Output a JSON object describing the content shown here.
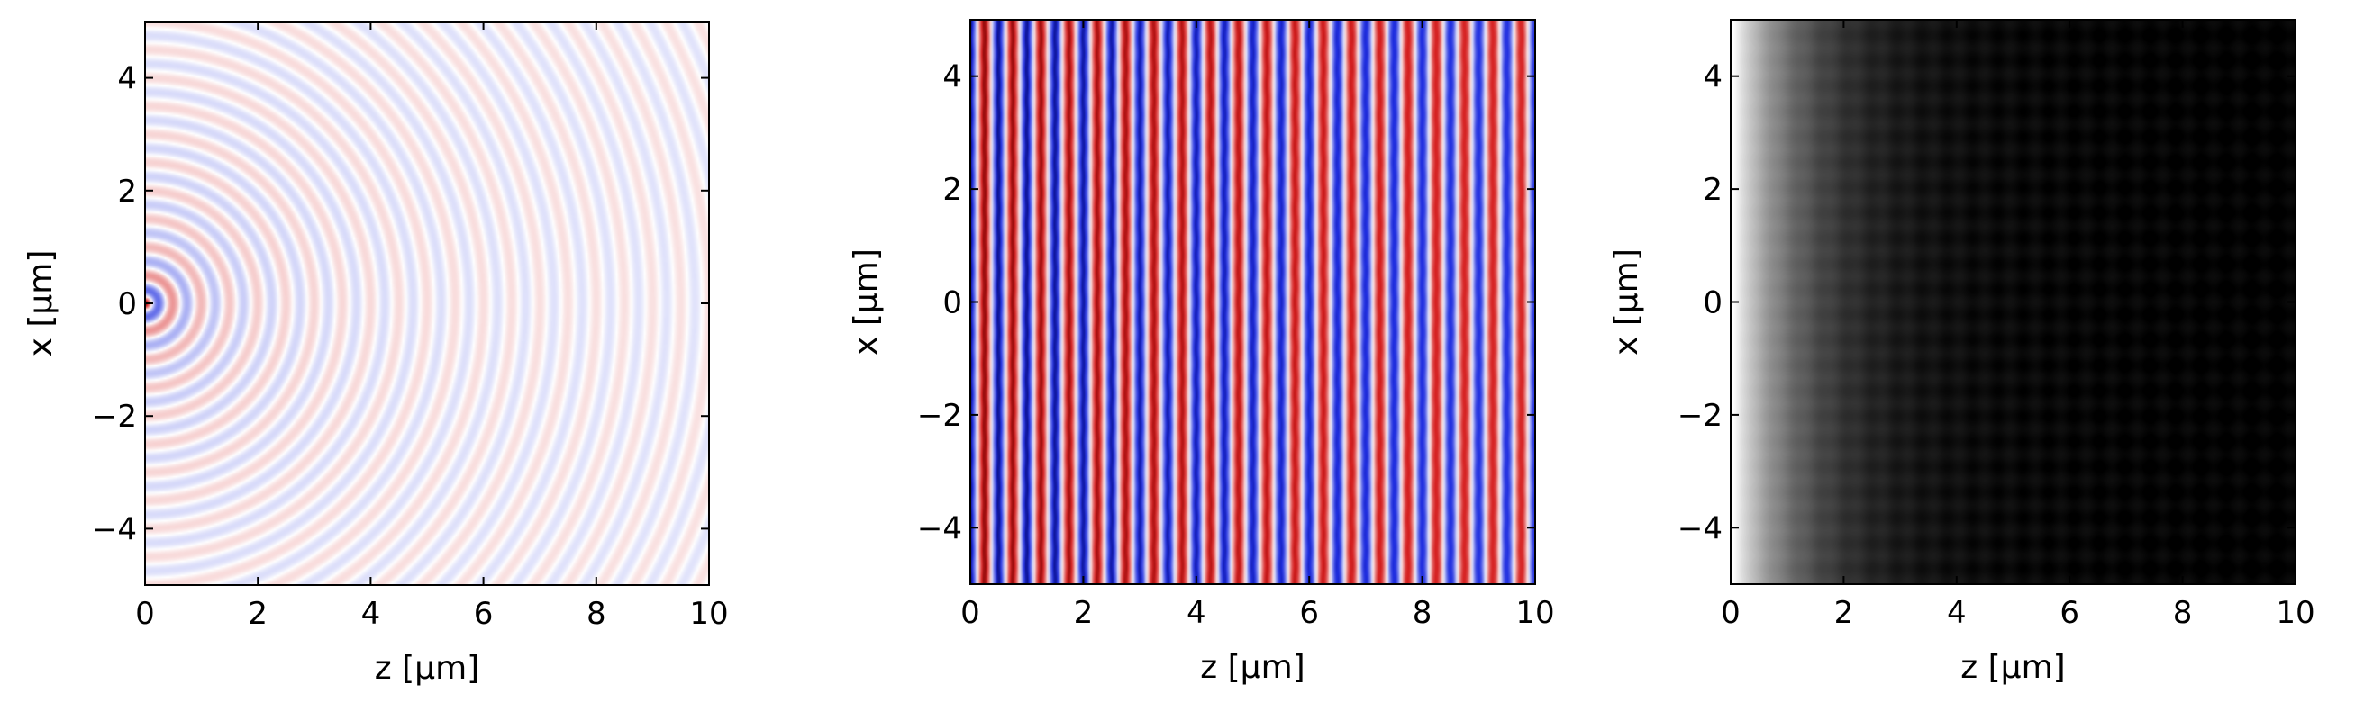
{
  "chart_data": [
    {
      "type": "heatmap",
      "field": "spherical-wave",
      "colormap": "seismic",
      "xlabel": "z [µm]",
      "ylabel": "x [µm]",
      "xlim": [
        0,
        10
      ],
      "ylim": [
        -5,
        5
      ],
      "xticks": [
        0,
        2,
        4,
        6,
        8,
        10
      ],
      "xtick_labels": [
        "0",
        "2",
        "4",
        "6",
        "8",
        "10"
      ],
      "yticks": [
        -4,
        -2,
        0,
        2,
        4
      ],
      "ytick_labels": [
        "−4",
        "−2",
        "0",
        "2",
        "4"
      ],
      "source_position": [
        0,
        0
      ],
      "ring_period_um": 0.5,
      "grid": false
    },
    {
      "type": "heatmap",
      "field": "plane-wave-fringes",
      "colormap": "seismic",
      "xlabel": "z [µm]",
      "ylabel": "x [µm]",
      "xlim": [
        0,
        10
      ],
      "ylim": [
        -5,
        5
      ],
      "xticks": [
        0,
        2,
        4,
        6,
        8,
        10
      ],
      "xtick_labels": [
        "0",
        "2",
        "4",
        "6",
        "8",
        "10"
      ],
      "yticks": [
        -4,
        -2,
        0,
        2,
        4
      ],
      "ytick_labels": [
        "−4",
        "−2",
        "0",
        "2",
        "4"
      ],
      "fringe_period_um": 0.5,
      "grid": false
    },
    {
      "type": "heatmap",
      "field": "intensity",
      "colormap": "gray",
      "xlabel": "z [µm]",
      "ylabel": "x [µm]",
      "xlim": [
        0,
        10
      ],
      "ylim": [
        -5,
        5
      ],
      "xticks": [
        0,
        2,
        4,
        6,
        8,
        10
      ],
      "xtick_labels": [
        "0",
        "2",
        "4",
        "6",
        "8",
        "10"
      ],
      "yticks": [
        -4,
        -2,
        0,
        2,
        4
      ],
      "ytick_labels": [
        "−4",
        "−2",
        "0",
        "2",
        "4"
      ],
      "grid": false
    }
  ],
  "colors": {
    "positive": "#d62020",
    "negative": "#1f2ee0",
    "neutral": "#ffffff",
    "intensity_high": "#ffffff",
    "intensity_low": "#000000"
  }
}
